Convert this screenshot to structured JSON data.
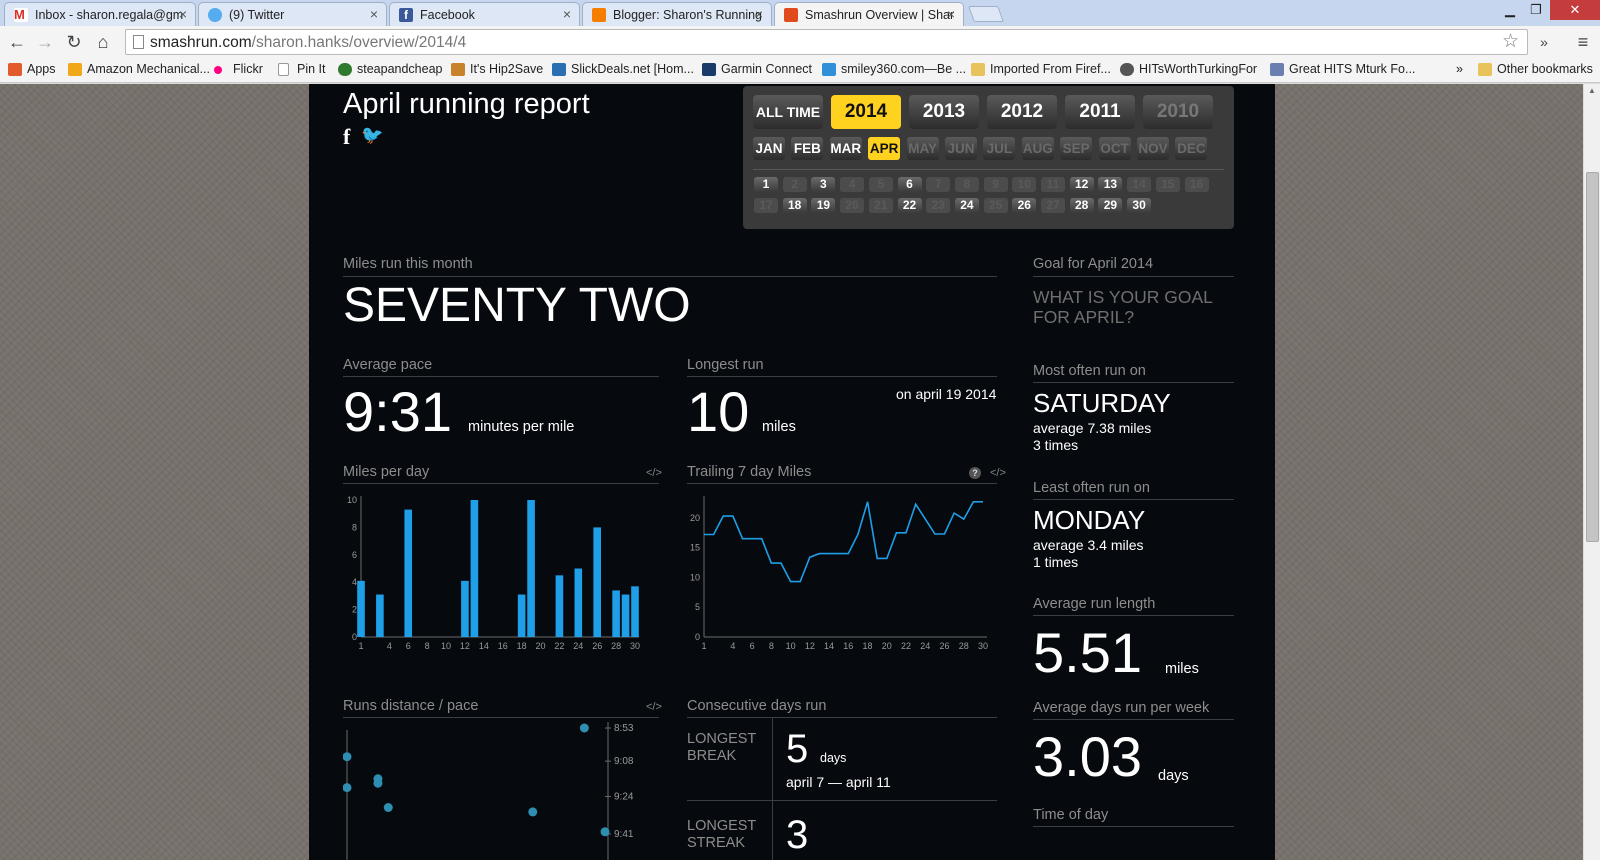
{
  "browser": {
    "tabs": [
      {
        "label": "Inbox - sharon.regala@gm",
        "icon": "gmail-icon",
        "color": "#d93025"
      },
      {
        "label": "(9) Twitter",
        "icon": "twitter-icon",
        "color": "#55acee"
      },
      {
        "label": "Facebook",
        "icon": "facebook-icon",
        "color": "#3b5998"
      },
      {
        "label": "Blogger: Sharon's Running",
        "icon": "blogger-icon",
        "color": "#f57d00"
      },
      {
        "label": "Smashrun Overview | Shar",
        "icon": "smashrun-icon",
        "color": "#e04a1c"
      }
    ],
    "active_tab": 4,
    "url_host": "smashrun.com",
    "url_path": "/sharon.hanks/overview/2014/4",
    "bookmarks": [
      {
        "label": "Apps",
        "icon": "apps-icon",
        "color": "#e25b2c"
      },
      {
        "label": "Amazon Mechanical...",
        "icon": "amazon-icon",
        "color": "#f0a818"
      },
      {
        "label": "Flickr",
        "icon": "flickr-icon",
        "color": "#ff0084"
      },
      {
        "label": "Pin It",
        "icon": "page-icon",
        "color": "#ffffff"
      },
      {
        "label": "steapandcheap",
        "icon": "steap-icon",
        "color": "#2f7a2f"
      },
      {
        "label": "It's Hip2Save",
        "icon": "hip2save-icon",
        "color": "#c9822c"
      },
      {
        "label": "SlickDeals.net [Hom...",
        "icon": "slickdeals-icon",
        "color": "#2a6fb0"
      },
      {
        "label": "Garmin Connect",
        "icon": "garmin-icon",
        "color": "#1a3a6a"
      },
      {
        "label": "smiley360.com—Be ...",
        "icon": "smiley-icon",
        "color": "#2f8fd8"
      },
      {
        "label": "Imported From Firef...",
        "icon": "folder-icon",
        "color": "#e8c25a"
      },
      {
        "label": "HITsWorthTurkingFor",
        "icon": "reddit-icon",
        "color": "#555555"
      },
      {
        "label": "Great HITS Mturk Fo...",
        "icon": "page-icon",
        "color": "#6a7fb0"
      }
    ],
    "bookmarks_overflow": "»",
    "other_bookmarks": "Other bookmarks"
  },
  "report": {
    "title": "April running report",
    "social": {
      "facebook": "f",
      "twitter": "🐦"
    },
    "years": [
      {
        "label": "ALL TIME",
        "state": "normal"
      },
      {
        "label": "2014",
        "state": "selected"
      },
      {
        "label": "2013",
        "state": "normal"
      },
      {
        "label": "2012",
        "state": "normal"
      },
      {
        "label": "2011",
        "state": "normal"
      },
      {
        "label": "2010",
        "state": "disabled"
      }
    ],
    "months": [
      {
        "label": "JAN",
        "state": "normal"
      },
      {
        "label": "FEB",
        "state": "normal"
      },
      {
        "label": "MAR",
        "state": "normal"
      },
      {
        "label": "APR",
        "state": "selected"
      },
      {
        "label": "MAY",
        "state": "disabled"
      },
      {
        "label": "JUN",
        "state": "disabled"
      },
      {
        "label": "JUL",
        "state": "disabled"
      },
      {
        "label": "AUG",
        "state": "disabled"
      },
      {
        "label": "SEP",
        "state": "disabled"
      },
      {
        "label": "OCT",
        "state": "disabled"
      },
      {
        "label": "NOV",
        "state": "disabled"
      },
      {
        "label": "DEC",
        "state": "disabled"
      }
    ],
    "run_days": [
      1,
      3,
      6,
      12,
      13,
      18,
      19,
      22,
      24,
      26,
      28,
      29,
      30
    ],
    "days_in_month": 30,
    "miles_label": "Miles run this month",
    "miles_value": "SEVENTY TWO",
    "avg_pace_label": "Average pace",
    "avg_pace_value": "9:31",
    "avg_pace_unit": "minutes per mile",
    "longest_label": "Longest run",
    "longest_value": "10",
    "longest_unit": "miles",
    "longest_date": "on april 19 2014",
    "mpd_label": "Miles per day",
    "trailing_label": "Trailing 7 day Miles",
    "embed_code": "</>",
    "help": "?",
    "runs_label": "Runs distance / pace",
    "consec_label": "Consecutive days run",
    "longest_break_label": "LONGEST BREAK",
    "longest_break_value": "5",
    "longest_break_unit": "days",
    "longest_break_dates": "april 7 — april 11",
    "longest_streak_label": "LONGEST STREAK",
    "longest_streak_value": "3",
    "goal_label": "Goal for April 2014",
    "goal_prompt": "WHAT IS YOUR GOAL FOR APRIL?",
    "most_label": "Most often run on",
    "most_day": "SATURDAY",
    "most_avg": "average 7.38 miles",
    "most_times": "3 times",
    "least_label": "Least often run on",
    "least_day": "MONDAY",
    "least_avg": "average 3.4 miles",
    "least_times": "1 times",
    "avg_len_label": "Average run length",
    "avg_len_value": "5.51",
    "avg_len_unit": "miles",
    "avg_days_label": "Average days run per week",
    "avg_days_value": "3.03",
    "avg_days_unit": "days",
    "tod_label": "Time of day"
  },
  "chart_data": [
    {
      "type": "bar",
      "x": [
        1,
        3,
        6,
        12,
        13,
        18,
        19,
        22,
        24,
        26,
        28,
        29,
        30
      ],
      "values": [
        4.1,
        3.1,
        9.3,
        4.1,
        10.0,
        3.1,
        10.0,
        4.5,
        5.0,
        8.0,
        3.4,
        3.1,
        3.7
      ],
      "xticks": [
        "1",
        "4",
        "6",
        "8",
        "10",
        "12",
        "14",
        "16",
        "18",
        "20",
        "22",
        "24",
        "26",
        "28",
        "30"
      ],
      "yticks": [
        "0",
        "2",
        "4",
        "6",
        "8",
        "10"
      ],
      "xlim": [
        1,
        30
      ],
      "ylim": [
        0,
        10
      ],
      "color": "#1e9fe8"
    },
    {
      "type": "line",
      "x": [
        1,
        2,
        3,
        4,
        5,
        6,
        7,
        8,
        9,
        10,
        11,
        12,
        13,
        14,
        15,
        16,
        17,
        18,
        19,
        20,
        21,
        22,
        23,
        24,
        25,
        26,
        27,
        28,
        29,
        30
      ],
      "values": [
        17.2,
        17.2,
        20.3,
        20.3,
        16.5,
        16.5,
        16.5,
        12.4,
        12.4,
        9.3,
        9.3,
        13.4,
        14.0,
        14.0,
        14.0,
        14.0,
        17.2,
        22.7,
        13.2,
        13.2,
        17.5,
        17.5,
        22.3,
        19.8,
        17.3,
        17.3,
        20.8,
        19.8,
        22.7,
        22.7
      ],
      "xticks": [
        "1",
        "4",
        "6",
        "8",
        "10",
        "12",
        "14",
        "16",
        "18",
        "20",
        "22",
        "24",
        "26",
        "28",
        "30"
      ],
      "yticks": [
        "0",
        "5",
        "10",
        "15",
        "20"
      ],
      "xlim": [
        1,
        30
      ],
      "ylim": [
        0,
        23
      ],
      "color": "#1e9fe8"
    },
    {
      "type": "scatter",
      "y_axis_labels": [
        "8:53",
        "9:08",
        "9:24",
        "9:41"
      ],
      "points": [
        {
          "day": 1,
          "pace": "9:06"
        },
        {
          "day": 1,
          "pace": "9:20"
        },
        {
          "day": 4,
          "pace": "9:16"
        },
        {
          "day": 4,
          "pace": "9:18"
        },
        {
          "day": 5,
          "pace": "9:29"
        },
        {
          "day": 19,
          "pace": "9:31"
        },
        {
          "day": 24,
          "pace": "8:53"
        },
        {
          "day": 26,
          "pace": "9:40"
        }
      ],
      "color": "#2f8fb2"
    }
  ]
}
